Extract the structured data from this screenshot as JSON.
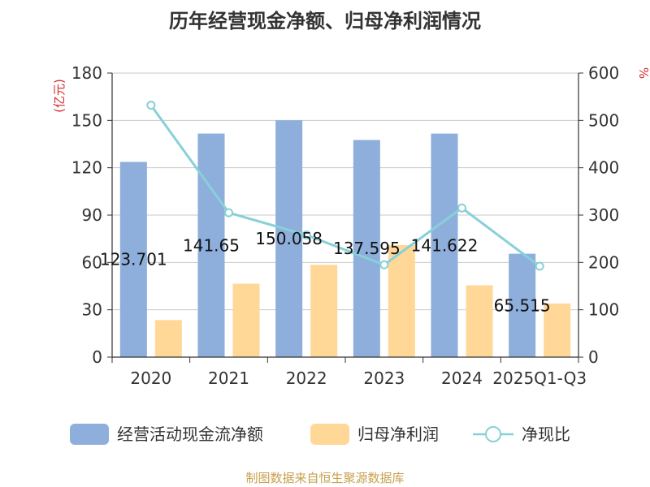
{
  "title": "历年经营现金净额、归母净利润情况",
  "source": "制图数据来自恒生聚源数据库",
  "colors": {
    "bar1": "#8eaedb",
    "bar2": "#ffd898",
    "line": "#88d0d8",
    "axis": "#333333",
    "grid": "#c8c8c8",
    "unit": "#d42a2a"
  },
  "chart_data": {
    "type": "bar",
    "categories": [
      "2020",
      "2021",
      "2022",
      "2023",
      "2024",
      "2025Q1-Q3"
    ],
    "series": [
      {
        "name": "经营活动现金流净额",
        "kind": "bar",
        "axis": "left",
        "values": [
          123.701,
          141.65,
          150.058,
          137.595,
          141.622,
          65.515
        ],
        "labels": [
          "123.701",
          "141.65",
          "150.058",
          "137.595",
          "141.622",
          "65.515"
        ]
      },
      {
        "name": "归母净利润",
        "kind": "bar",
        "axis": "left",
        "values": [
          23.5,
          46.5,
          58.5,
          71.0,
          45.5,
          34.0
        ]
      },
      {
        "name": "净现比",
        "kind": "line",
        "axis": "right",
        "values": [
          532,
          305,
          258,
          195,
          315,
          192
        ]
      }
    ],
    "y_left": {
      "label": "(亿元)",
      "min": 0,
      "max": 180,
      "ticks": [
        0,
        30,
        60,
        90,
        120,
        150,
        180
      ]
    },
    "y_right": {
      "label": "%",
      "min": 0,
      "max": 600,
      "ticks": [
        0,
        100,
        200,
        300,
        400,
        500,
        600
      ]
    },
    "grid": true,
    "legend_position": "bottom"
  }
}
